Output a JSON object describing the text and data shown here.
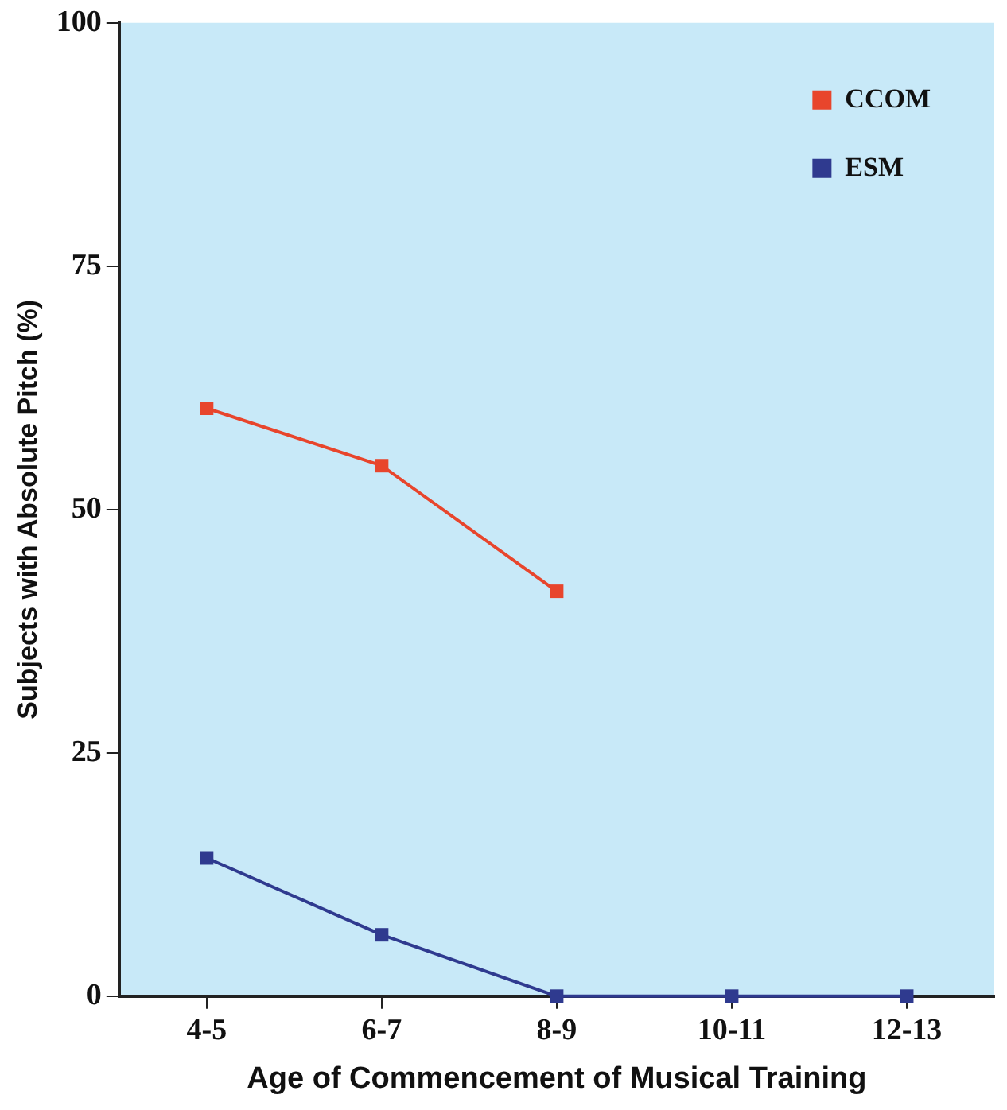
{
  "chart_data": {
    "type": "line",
    "xlabel": "Age of Commencement of Musical Training",
    "ylabel": "Subjects with Absolute Pitch (%)",
    "categories": [
      "4-5",
      "6-7",
      "8-9",
      "10-11",
      "12-13"
    ],
    "series": [
      {
        "name": "CCOM",
        "color": "#e8452c",
        "values": [
          60.4,
          54.5,
          41.6,
          null,
          null
        ]
      },
      {
        "name": "ESM",
        "color": "#2f3a8f",
        "values": [
          14.2,
          6.3,
          0,
          0,
          0
        ]
      }
    ],
    "ylim": [
      0,
      100
    ],
    "yticks": [
      0,
      25,
      50,
      75,
      100
    ],
    "grid": false,
    "legend": "top right",
    "marker": "square",
    "line_style": "solid"
  }
}
